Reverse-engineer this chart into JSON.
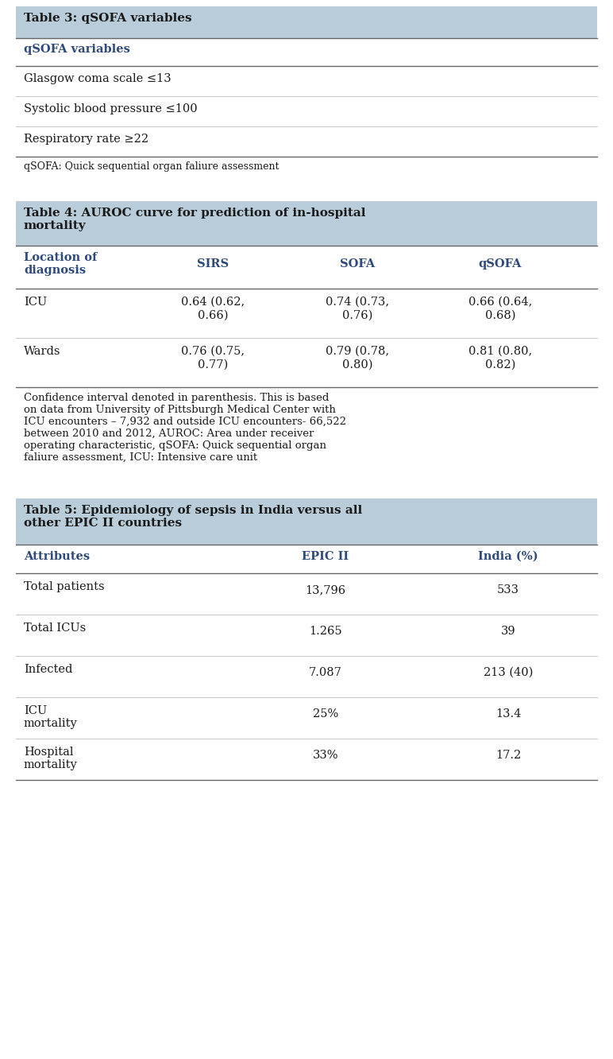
{
  "bg_color": "#ffffff",
  "header_bg": "#b8cdd9",
  "col_header_color": "#2e4a7a",
  "text_color": "#1a1a1a",
  "line_color": "#666666",
  "fig_width": 7.72,
  "fig_height": 13.32,
  "dpi": 100,
  "table3": {
    "title": "Table 3: qSOFA variables",
    "col_header": "qSOFA variables",
    "rows": [
      "Glasgow coma scale ≤13",
      "Systolic blood pressure ≤100",
      "Respiratory rate ≥22"
    ],
    "footnote": "qSOFA: Quick sequential organ faliure assessment"
  },
  "table4": {
    "title": "Table 4: AUROC curve for prediction of in-hospital\nmortality",
    "col_headers": [
      "Location of\ndiagnosis",
      "SIRS",
      "SOFA",
      "qSOFA"
    ],
    "rows": [
      [
        "ICU",
        "0.64 (0.62,\n0.66)",
        "0.74 (0.73,\n0.76)",
        "0.66 (0.64,\n0.68)"
      ],
      [
        "Wards",
        "0.76 (0.75,\n0.77)",
        "0.79 (0.78,\n0.80)",
        "0.81 (0.80,\n0.82)"
      ]
    ],
    "footnote": "Confidence interval denoted in parenthesis. This is based\non data from University of Pittsburgh Medical Center with\nICU encounters – 7,932 and outside ICU encounters- 66,522\nbetween 2010 and 2012, AUROC: Area under receiver\noperating characteristic, qSOFA: Quick sequential organ\nfaliure assessment, ICU: Intensive care unit"
  },
  "table5": {
    "title": "Table 5: Epidemiology of sepsis in India versus all\nother EPIC II countries",
    "col_headers": [
      "Attributes",
      "EPIC II",
      "India (%)"
    ],
    "rows": [
      [
        "Total patients",
        "13,796",
        "533"
      ],
      [
        "Total ICUs",
        "1.265",
        "39"
      ],
      [
        "Infected",
        "7.087",
        "213 (40)"
      ],
      [
        "ICU\nmortality",
        "25%",
        "13.4"
      ],
      [
        "Hospital\nmortality",
        "33%",
        "17.2"
      ]
    ]
  }
}
